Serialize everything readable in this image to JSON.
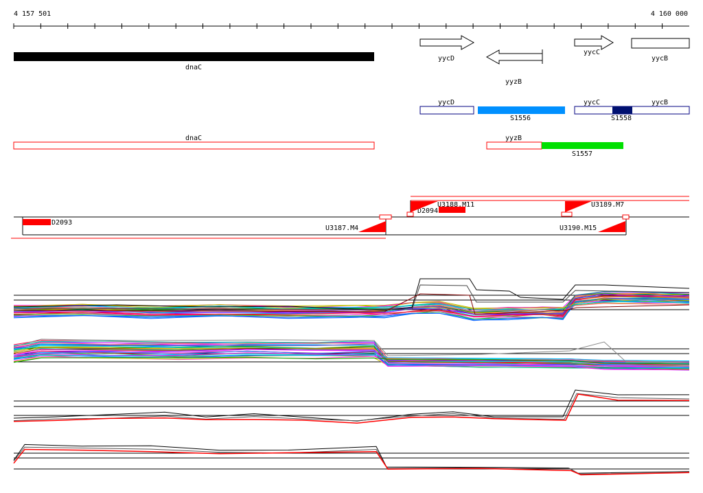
{
  "axis": {
    "start_label": "4 157 501",
    "end_label": "4 160 000",
    "start_bp": 4157501,
    "end_bp": 4160000
  },
  "genes": [
    {
      "name": "dnaC",
      "strand": "+",
      "style": "solid-black",
      "label_pos": "below"
    },
    {
      "name": "yycD",
      "strand": "+",
      "style": "arrow",
      "label_pos": "below"
    },
    {
      "name": "yyzB",
      "strand": "-",
      "style": "arrow",
      "label_pos": "below"
    },
    {
      "name": "yycC",
      "strand": "+",
      "style": "arrow",
      "label_pos": "below"
    },
    {
      "name": "yycB",
      "strand": "+",
      "style": "box",
      "label_pos": "below"
    }
  ],
  "annotation_rows": [
    {
      "row": 1,
      "outlined_boxes": [
        {
          "name": "yycD",
          "color": "#000080"
        },
        {
          "name": "yycC",
          "color": "#000080"
        },
        {
          "name": "yycB",
          "color": "#000080"
        }
      ],
      "filled_segments": [
        {
          "name": "S1556",
          "color": "#0090ff"
        },
        {
          "name": "S1558",
          "color": "#001070"
        }
      ]
    },
    {
      "row": 2,
      "outlined_boxes": [
        {
          "name": "dnaC",
          "color": "#ff0000"
        },
        {
          "name": "yyzB",
          "color": "#ff0000"
        }
      ],
      "filled_segments": [
        {
          "name": "S1557",
          "color": "#00e000"
        }
      ]
    }
  ],
  "features": [
    {
      "name": "D2093",
      "type": "red-block"
    },
    {
      "name": "D2094",
      "type": "red-block"
    },
    {
      "name": "U3187.M4",
      "type": "triangle"
    },
    {
      "name": "U3188.M11",
      "type": "triangle"
    },
    {
      "name": "U3189.M7",
      "type": "triangle"
    },
    {
      "name": "U3190.M15",
      "type": "triangle"
    }
  ],
  "colors": {
    "feature_red": "#ff0000",
    "gene_black": "#000000",
    "s1556": "#0090ff",
    "s1558": "#001070",
    "s1557": "#00e000"
  }
}
